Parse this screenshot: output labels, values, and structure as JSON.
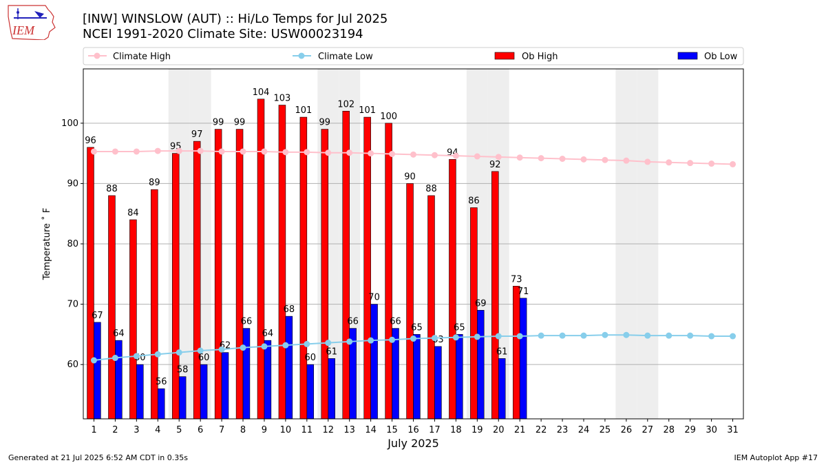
{
  "header": {
    "title_line1": "[INW] WINSLOW (AUT) :: Hi/Lo Temps for Jul 2025",
    "title_line2": "NCEI 1991-2020 Climate Site: USW00023194",
    "logo_text": "IEM"
  },
  "footer": {
    "left": "Generated at 21 Jul 2025 6:52 AM CDT in 0.35s",
    "right": "IEM Autoplot App #17"
  },
  "chart_data": {
    "type": "bar",
    "xlabel": "July 2025",
    "ylabel": "Temperature ˚ F",
    "ylim": [
      51,
      109
    ],
    "yticks": [
      60,
      70,
      80,
      90,
      100
    ],
    "days": [
      1,
      2,
      3,
      4,
      5,
      6,
      7,
      8,
      9,
      10,
      11,
      12,
      13,
      14,
      15,
      16,
      17,
      18,
      19,
      20,
      21,
      22,
      23,
      24,
      25,
      26,
      27,
      28,
      29,
      30,
      31
    ],
    "weekend_days": [
      5,
      6,
      12,
      13,
      19,
      20,
      26,
      27
    ],
    "legend": [
      "Climate High",
      "Climate Low",
      "Ob High",
      "Ob Low"
    ],
    "legend_position": "top, above plot",
    "grid": "horizontal",
    "series": [
      {
        "name": "Ob High",
        "kind": "bar",
        "color": "#ff0000",
        "values": [
          96,
          88,
          84,
          89,
          95,
          97,
          99,
          99,
          104,
          103,
          101,
          99,
          102,
          101,
          100,
          90,
          88,
          94,
          86,
          92,
          73
        ]
      },
      {
        "name": "Ob Low",
        "kind": "bar",
        "color": "#0000ff",
        "values": [
          67,
          64,
          60,
          56,
          58,
          60,
          62,
          66,
          64,
          68,
          60,
          61,
          66,
          70,
          66,
          65,
          63,
          65,
          69,
          61,
          71
        ]
      },
      {
        "name": "Climate High",
        "kind": "line",
        "color": "#ffc0cb",
        "values": [
          95.3,
          95.3,
          95.3,
          95.4,
          95.4,
          95.4,
          95.3,
          95.3,
          95.3,
          95.2,
          95.2,
          95.1,
          95.1,
          95.0,
          94.9,
          94.8,
          94.7,
          94.6,
          94.5,
          94.4,
          94.3,
          94.2,
          94.1,
          94.0,
          93.9,
          93.8,
          93.6,
          93.5,
          93.4,
          93.3,
          93.2
        ]
      },
      {
        "name": "Climate Low",
        "kind": "line",
        "color": "#87ceeb",
        "values": [
          60.7,
          61.1,
          61.4,
          61.7,
          62.0,
          62.3,
          62.5,
          62.8,
          63.0,
          63.2,
          63.4,
          63.6,
          63.8,
          64.0,
          64.1,
          64.3,
          64.4,
          64.5,
          64.6,
          64.7,
          64.7,
          64.8,
          64.8,
          64.8,
          64.9,
          64.9,
          64.8,
          64.8,
          64.8,
          64.7,
          64.7
        ]
      }
    ]
  }
}
